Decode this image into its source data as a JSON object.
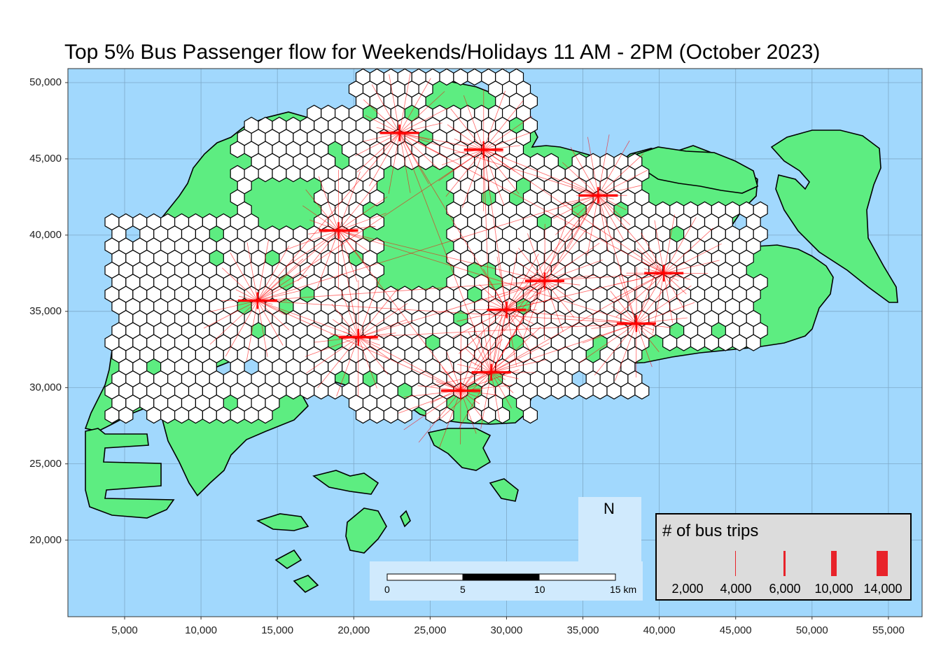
{
  "title": "Top 5% Bus Passenger flow for Weekends/Holidays 11 AM - 2PM (October 2023)",
  "axes": {
    "x_ticks": [
      "5,000",
      "10,000",
      "15,000",
      "20,000",
      "25,000",
      "30,000",
      "35,000",
      "40,000",
      "45,000",
      "50,000",
      "55,000"
    ],
    "y_ticks": [
      "50,000",
      "45,000",
      "40,000",
      "35,000",
      "30,000",
      "25,000",
      "20,000"
    ]
  },
  "colors": {
    "sea": "#a1d8fd",
    "land": "#5ded81",
    "hexagon_fill": "#ffffff",
    "flow_line": "#ff0000",
    "legend_bg": "#dcdcdc"
  },
  "legend": {
    "title": "# of bus trips",
    "items": [
      {
        "label": "2,000",
        "value": 2000
      },
      {
        "label": "4,000",
        "value": 4000
      },
      {
        "label": "6,000",
        "value": 6000
      },
      {
        "label": "10,000",
        "value": 10000
      },
      {
        "label": "14,000",
        "value": 14000
      }
    ]
  },
  "north_arrow": {
    "label": "N",
    "icon": "compass-star-icon"
  },
  "scale_bar": {
    "ticks": [
      "0",
      "5",
      "10",
      "15 km"
    ]
  },
  "chart_data": {
    "type": "map",
    "crs_units": "metres (SVY21)",
    "xlim": [
      2500,
      57500
    ],
    "ylim": [
      15000,
      51000
    ],
    "grid": true,
    "hubs": [
      {
        "x": 23000,
        "y": 46700
      },
      {
        "x": 28500,
        "y": 45600
      },
      {
        "x": 36000,
        "y": 42600
      },
      {
        "x": 19000,
        "y": 40300
      },
      {
        "x": 13700,
        "y": 35700
      },
      {
        "x": 20300,
        "y": 33300
      },
      {
        "x": 30000,
        "y": 35100
      },
      {
        "x": 32500,
        "y": 37000
      },
      {
        "x": 40300,
        "y": 37500
      },
      {
        "x": 38500,
        "y": 34200
      },
      {
        "x": 29000,
        "y": 31000
      },
      {
        "x": 27000,
        "y": 29800
      }
    ]
  }
}
